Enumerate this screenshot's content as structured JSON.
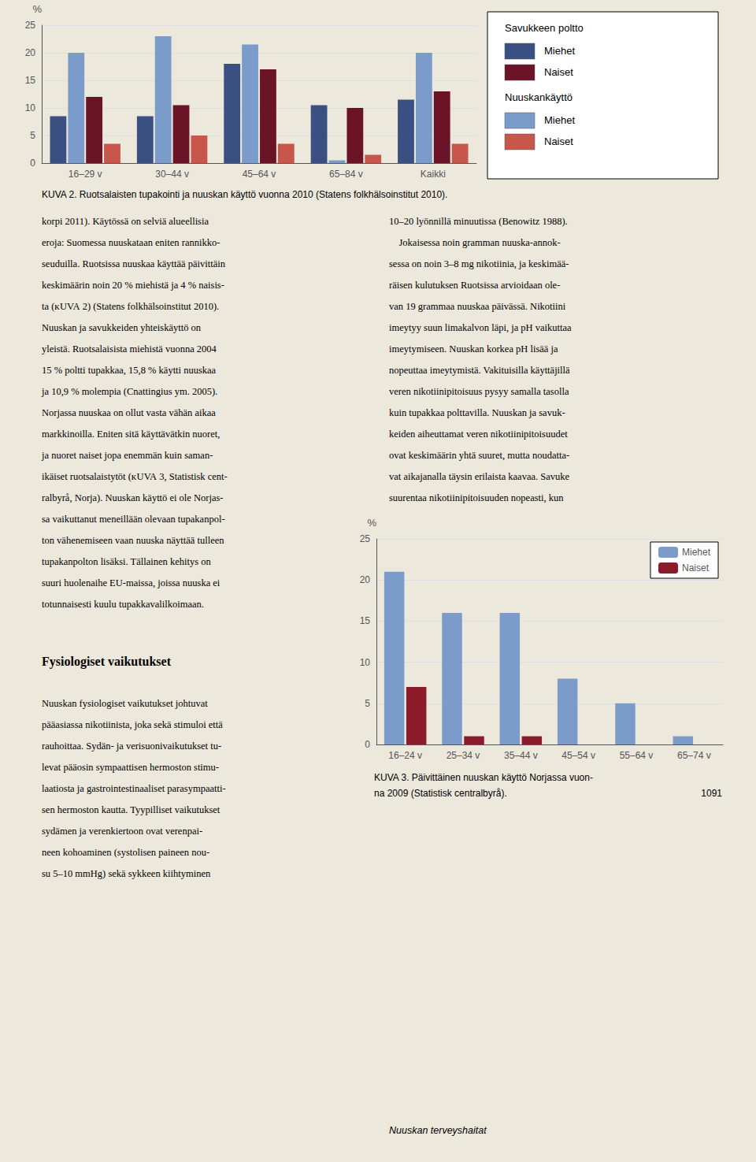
{
  "chart_data": [
    {
      "type": "bar",
      "title": "KUVA 2. Ruotsalaisten tupakointi ja nuuskan käyttö vuonna 2010 (Statens folkhälsoinstitut 2010).",
      "ylabel": "%",
      "categories": [
        "16–29 v",
        "30–44 v",
        "45–64 v",
        "65–84 v",
        "Kaikki"
      ],
      "series": [
        {
          "name": "Miehet",
          "group": "Savukkeen poltto",
          "color": "#3a4f82",
          "values": [
            8.5,
            8.5,
            18,
            10.5,
            11.5
          ]
        },
        {
          "name": "Miehet",
          "group": "Nuuskankäyttö",
          "color": "#7b9cca",
          "values": [
            20,
            23,
            21.5,
            0.5,
            20
          ]
        },
        {
          "name": "Naiset",
          "group": "Savukkeen poltto",
          "color": "#6b1428",
          "values": [
            12,
            10.5,
            17,
            10,
            13
          ]
        },
        {
          "name": "Naiset",
          "group": "Nuuskankäyttö",
          "color": "#c9564a",
          "values": [
            3.5,
            5,
            3.5,
            1.5,
            3.5
          ]
        }
      ],
      "ylim": [
        0,
        25
      ],
      "yticks": [
        0,
        5,
        10,
        15,
        20,
        25
      ],
      "grid": true,
      "legend": "right",
      "annotations": [
        [
          "korpi 2011). Käytössä on selviä alueellisia",
          "eroja: Suomessa nuuskataan eniten rannikko-",
          "seuduilla. Ruotsissa nuuskaa käyttää päivittäin",
          "keskimäärin noin 20 % miehistä ja 4 % naisis-",
          "ta (ᴋUVA 2) (Statens folkhälsoinstitut 2010).",
          "Nuuskan ja savukkeiden yhteiskäyttö on",
          "yleistä. Ruotsalaisista miehistä vuonna 2004",
          "15 % poltti tupakkaa, 15,8 % käytti nuuskaa",
          "ja 10,9 % molempia (Cnattingius ym. 2005).",
          "Norjassa nuuskaa on ollut vasta vähän aikaa",
          "markkinoilla. Eniten sitä käyttävätkin nuoret,",
          "ja nuoret naiset jopa enemmän kuin saman-",
          "ikäiset ruotsalaistytöt (ᴋUVA 3, Statistisk cent-",
          "ralbyrå, Norja). Nuuskan käyttö ei ole Norjas-",
          "sa vaikuttanut meneillään olevaan tupakanpol-",
          "ton vähenemiseen vaan nuuska näyttää tulleen",
          "tupakanpolton lisäksi. Tällainen kehitys on",
          "suuri huolenaihe EU-maissa, joissa nuuska ei",
          "totunnaisesti kuulu tupakkavalilkoimaan."
        ],
        [
          "Fysiologiset vaikutukset"
        ],
        [
          "Nuuskan fysiologiset vaikutukset johtuvat",
          "pääasiassa nikotiinista, joka sekä stimuloi että",
          "rauhoittaa. Sydän- ja verisuonivaikutukset tu-",
          "levat pääosin sympaattisen hermoston stimu-",
          "laatiosta ja gastrointestinaaliset parasympaatti-",
          "sen hermoston kautta. Tyypilliset vaikutukset",
          "sydämen ja verenkiertoon ovat verenpai-",
          "neen kohoaminen (systolisen paineen nou-",
          "su 5–10 mmHg) sekä sykkeen kiihtyminen"
        ],
        [
          "10–20 lyönnillä minuutissa (Benowitz 1988).",
          "    Jokaisessa noin gramman nuuska-annok-",
          "sessa on noin 3–8 mg nikotiinia, ja keskimää-",
          "räisen kulutuksen Ruotsissa arvioidaan ole-",
          "van 19 grammaa nuuskaa päivässä. Nikotiini",
          "imeytyy suun limakalvon läpi, ja pH vaikuttaa",
          "imeytymiseen. Nuuskan korkea pH lisää ja",
          "nopeuttaa imeytymistä. Vakituisilla käyttäjillä",
          "veren nikotiinipitoisuus pysyy samalla tasolla",
          "kuin tupakkaa polttavilla. Nuuskan ja savuk-",
          "keiden aiheuttamat veren nikotiinipitoisuudet",
          "ovat keskimäärin yhtä suuret, mutta noudatta-",
          "vat aikajanalla täysin erilaista kaavaa. Savuke",
          "suurentaa nikotiinipitoisuuden nopeasti, kun"
        ]
      ]
    },
    {
      "type": "bar",
      "title": "KUVA 3. Päivittäinen nuuskan käyttö Norjassa vuon-\nna 2009 (Statistisk centralbyrå).",
      "ylabel": "%",
      "categories": [
        "16–24 v",
        "25–34 v",
        "35–44 v",
        "45–54 v",
        "55–64 v",
        "65–74 v"
      ],
      "series": [
        {
          "name": "Miehet",
          "color": "#7b9cca",
          "values": [
            21,
            16,
            16,
            8,
            5,
            1
          ]
        },
        {
          "name": "Naiset",
          "color": "#8b1a2a",
          "values": [
            7,
            1,
            1,
            0,
            0,
            0
          ]
        }
      ],
      "ylim": [
        0,
        25
      ],
      "yticks": [
        0,
        5,
        10,
        15,
        20,
        25
      ],
      "grid": true,
      "legend": "upper right",
      "annotations": [
        "1091",
        "Nuuskan terveyshaitat"
      ]
    }
  ]
}
